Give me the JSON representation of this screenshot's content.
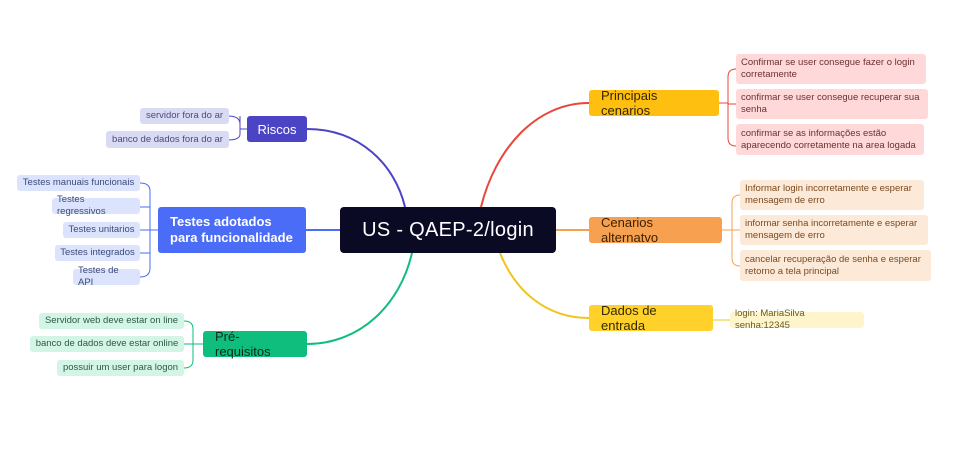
{
  "center": "US - QAEP-2/login",
  "riscos": {
    "title": "Riscos",
    "items": [
      "servidor fora do ar",
      "banco de dados fora do ar"
    ]
  },
  "testes": {
    "title": "Testes adotados para funcionalidade",
    "items": [
      "Testes manuais funcionais",
      "Testes regressivos",
      "Testes unitarios",
      "Testes integrados",
      "Testes de API"
    ]
  },
  "pre": {
    "title": "Pré-requisitos",
    "items": [
      "Servidor web deve estar on line",
      "banco de dados deve estar online",
      "possuir um user para logon"
    ]
  },
  "principais": {
    "title": "Principais cenarios",
    "items": [
      "Confirmar se user consegue fazer o login corretamente",
      "confirmar se user consegue recuperar sua senha",
      "confirmar se as informações estão aparecendo corretamente na area logada"
    ]
  },
  "alternativos": {
    "title": "Cenarios alternatvo",
    "items": [
      "Informar login incorretamente e esperar mensagem de erro",
      "informar senha incorretamente e esperar mensagem de erro",
      "cancelar recuperação de senha e esperar retorno a tela principal"
    ]
  },
  "dados": {
    "title": "Dados de entrada",
    "items": [
      "login: MariaSilva senha:12345"
    ]
  },
  "colors": {
    "center": "#0b0a24",
    "riscos": "#4b45c6",
    "testes": "#4a6cf7",
    "pre": "#0fbe7c",
    "principais": "#ffbf11",
    "alternativos": "#f7a050",
    "dados": "#ffd12a",
    "branch_principais": "#e8473b"
  }
}
